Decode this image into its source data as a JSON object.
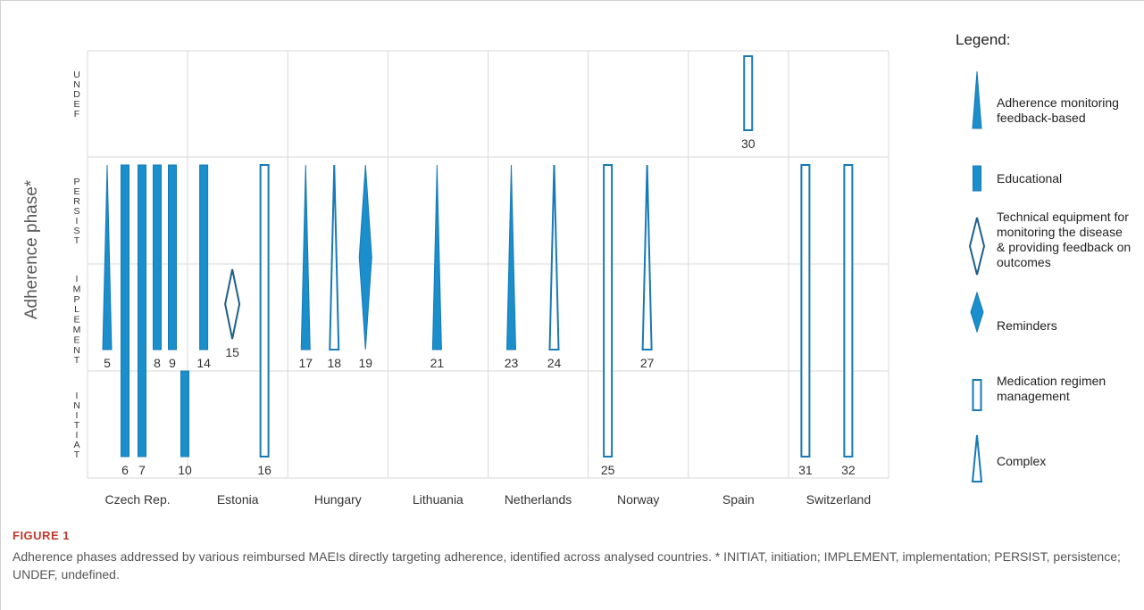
{
  "chart_data": {
    "type": "phase-marker-chart",
    "ylabel": "Adherence phase*",
    "phases": [
      "INITIAT",
      "IMPLEMENT",
      "PERSIST",
      "UNDEF"
    ],
    "countries": [
      "Czech Rep.",
      "Estonia",
      "Hungary",
      "Lithuania",
      "Netherlands",
      "Norway",
      "Spain",
      "Switzerland"
    ],
    "legend_title": "Legend:",
    "legend": [
      {
        "key": "feedback",
        "label": "Adherence monitoring feedback-based",
        "lines": [
          "Adherence monitoring",
          "feedback-based"
        ]
      },
      {
        "key": "educational",
        "label": "Educational",
        "lines": [
          "Educational"
        ]
      },
      {
        "key": "technical",
        "label": "Technical equipment for monitoring the disease & providing feedback on outcomes",
        "lines": [
          "Technical equipment for",
          "monitoring the disease",
          "& providing feedback on",
          "outcomes"
        ]
      },
      {
        "key": "reminders",
        "label": "Reminders",
        "lines": [
          "Reminders"
        ]
      },
      {
        "key": "regimen",
        "label": "Medication regimen management",
        "lines": [
          "Medication regimen",
          "management"
        ]
      },
      {
        "key": "complex",
        "label": "Complex",
        "lines": [
          "Complex"
        ]
      }
    ],
    "interventions": [
      {
        "id": "5",
        "country": "Czech Rep.",
        "type": "feedback",
        "from": "IMPLEMENT",
        "to": "PERSIST"
      },
      {
        "id": "6",
        "country": "Czech Rep.",
        "type": "educational",
        "from": "INITIAT",
        "to": "PERSIST"
      },
      {
        "id": "7",
        "country": "Czech Rep.",
        "type": "educational",
        "from": "INITIAT",
        "to": "PERSIST"
      },
      {
        "id": "8",
        "country": "Czech Rep.",
        "type": "educational",
        "from": "IMPLEMENT",
        "to": "PERSIST"
      },
      {
        "id": "9",
        "country": "Czech Rep.",
        "type": "educational",
        "from": "IMPLEMENT",
        "to": "PERSIST"
      },
      {
        "id": "10",
        "country": "Czech Rep.",
        "type": "educational",
        "from": "INITIAT",
        "to": "INITIAT"
      },
      {
        "id": "14",
        "country": "Estonia",
        "type": "educational",
        "from": "IMPLEMENT",
        "to": "PERSIST"
      },
      {
        "id": "15",
        "country": "Estonia",
        "type": "technical",
        "from": "IMPLEMENT",
        "to": "IMPLEMENT"
      },
      {
        "id": "16",
        "country": "Estonia",
        "type": "regimen",
        "from": "INITIAT",
        "to": "PERSIST"
      },
      {
        "id": "17",
        "country": "Hungary",
        "type": "feedback",
        "from": "IMPLEMENT",
        "to": "PERSIST"
      },
      {
        "id": "18",
        "country": "Hungary",
        "type": "complex",
        "from": "IMPLEMENT",
        "to": "PERSIST"
      },
      {
        "id": "19",
        "country": "Hungary",
        "type": "reminders",
        "from": "IMPLEMENT",
        "to": "PERSIST"
      },
      {
        "id": "21",
        "country": "Lithuania",
        "type": "feedback",
        "from": "IMPLEMENT",
        "to": "PERSIST"
      },
      {
        "id": "23",
        "country": "Netherlands",
        "type": "feedback",
        "from": "IMPLEMENT",
        "to": "PERSIST"
      },
      {
        "id": "24",
        "country": "Netherlands",
        "type": "complex",
        "from": "IMPLEMENT",
        "to": "PERSIST"
      },
      {
        "id": "25",
        "country": "Norway",
        "type": "regimen",
        "from": "INITIAT",
        "to": "PERSIST"
      },
      {
        "id": "27",
        "country": "Norway",
        "type": "complex",
        "from": "IMPLEMENT",
        "to": "PERSIST"
      },
      {
        "id": "30",
        "country": "Spain",
        "type": "regimen",
        "from": "UNDEF",
        "to": "UNDEF"
      },
      {
        "id": "31",
        "country": "Switzerland",
        "type": "regimen",
        "from": "INITIAT",
        "to": "PERSIST"
      },
      {
        "id": "32",
        "country": "Switzerland",
        "type": "regimen",
        "from": "INITIAT",
        "to": "PERSIST"
      }
    ]
  },
  "caption": {
    "label": "FIGURE 1",
    "text": "Adherence phases addressed by various reimbursed MAEIs directly targeting adherence, identified across analysed countries. * INITIAT, initiation; IMPLEMENT, implementation; PERSIST, persistence; UNDEF, undefined."
  },
  "colors": {
    "fill": "#1a8fcc",
    "stroke": "#1779b5",
    "technical_stroke": "#1f5f8b",
    "grid": "#d9d9d9",
    "text": "#333333",
    "axis_label": "#595959",
    "caption_label": "#c0392b"
  }
}
